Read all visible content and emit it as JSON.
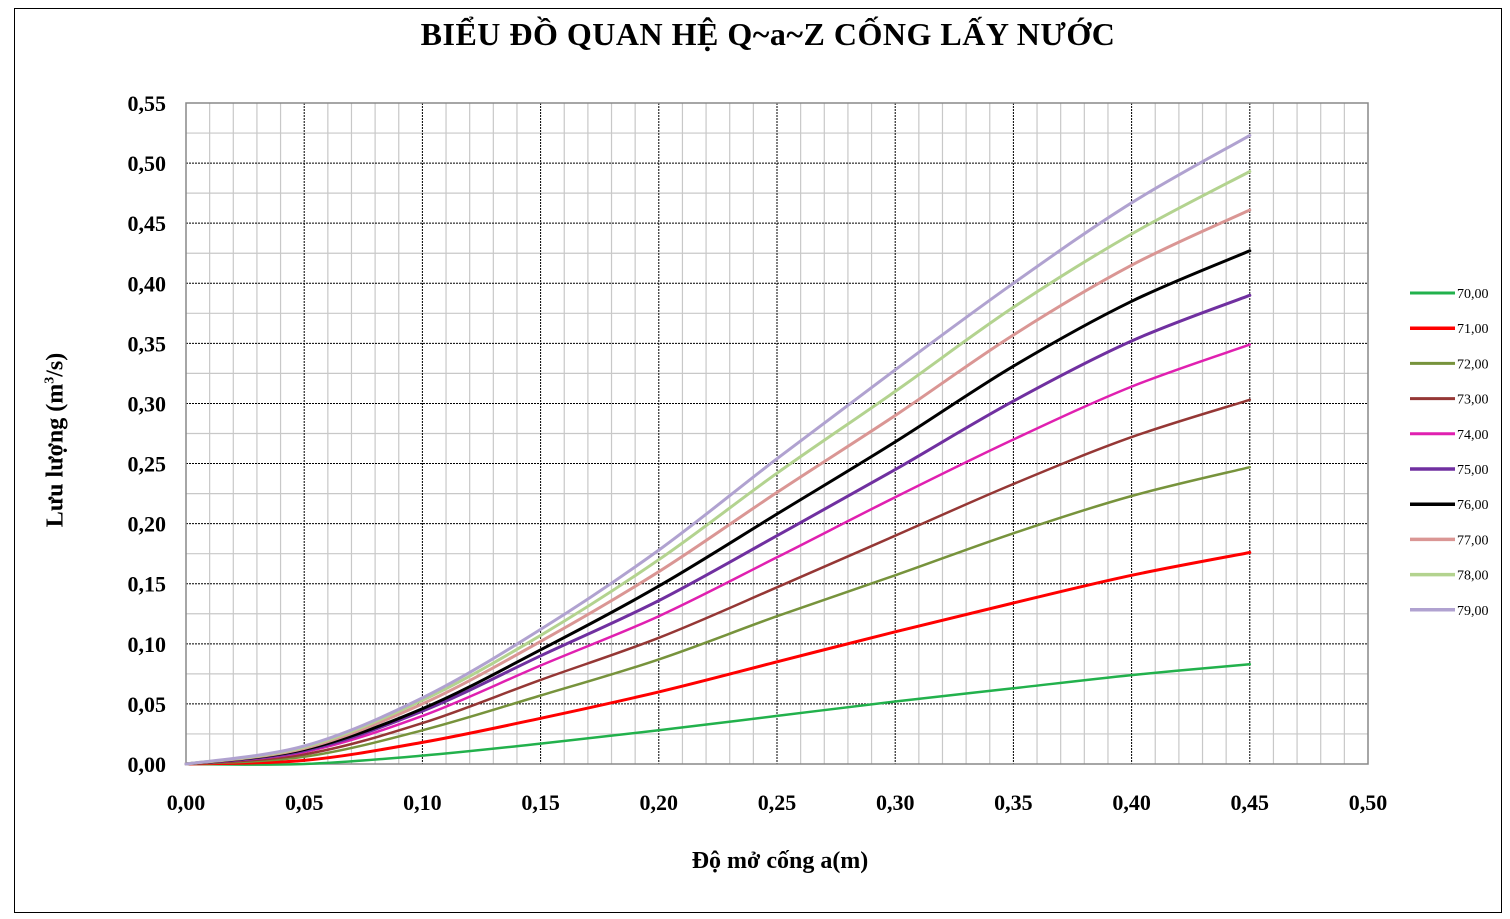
{
  "chart_data": {
    "type": "line",
    "title": "BIỂU ĐỒ QUAN HỆ Q~a~Z CỐNG LẤY NƯỚC",
    "xlabel": "Độ mở cống a(m)",
    "ylabel": "Lưu lượng (m³/s)",
    "xlim": [
      0,
      0.5
    ],
    "ylim": [
      0,
      0.55
    ],
    "x_ticks": [
      "0,00",
      "0,05",
      "0,10",
      "0,15",
      "0,20",
      "0,25",
      "0,30",
      "0,35",
      "0,40",
      "0,45",
      "0,50"
    ],
    "y_ticks": [
      "0,00",
      "0,05",
      "0,10",
      "0,15",
      "0,20",
      "0,25",
      "0,30",
      "0,35",
      "0,40",
      "0,45",
      "0,50",
      "0,55"
    ],
    "grid": true,
    "legend_position": "right",
    "x": [
      0.0,
      0.05,
      0.1,
      0.15,
      0.2,
      0.25,
      0.3,
      0.35,
      0.4,
      0.45
    ],
    "series": [
      {
        "name": "70,00",
        "color": "#22b14c",
        "width": 2.5,
        "values": [
          0.0,
          0.0,
          0.007,
          0.017,
          0.028,
          0.04,
          0.052,
          0.063,
          0.074,
          0.083
        ]
      },
      {
        "name": "71,00",
        "color": "#ff0000",
        "width": 3,
        "values": [
          0.0,
          0.003,
          0.018,
          0.038,
          0.06,
          0.085,
          0.11,
          0.134,
          0.157,
          0.176
        ]
      },
      {
        "name": "72,00",
        "color": "#77933c",
        "width": 2.5,
        "values": [
          0.0,
          0.006,
          0.028,
          0.057,
          0.087,
          0.123,
          0.157,
          0.192,
          0.223,
          0.247
        ]
      },
      {
        "name": "73,00",
        "color": "#953735",
        "width": 2.5,
        "values": [
          0.0,
          0.008,
          0.034,
          0.07,
          0.105,
          0.147,
          0.19,
          0.233,
          0.272,
          0.303
        ]
      },
      {
        "name": "74,00",
        "color": "#e020b0",
        "width": 2.5,
        "values": [
          0.0,
          0.01,
          0.04,
          0.082,
          0.123,
          0.172,
          0.222,
          0.27,
          0.314,
          0.349
        ]
      },
      {
        "name": "75,00",
        "color": "#7030a0",
        "width": 3,
        "values": [
          0.0,
          0.011,
          0.044,
          0.09,
          0.136,
          0.19,
          0.245,
          0.302,
          0.352,
          0.39
        ]
      },
      {
        "name": "76,00",
        "color": "#000000",
        "width": 3,
        "values": [
          0.0,
          0.012,
          0.046,
          0.095,
          0.148,
          0.208,
          0.268,
          0.331,
          0.385,
          0.427
        ]
      },
      {
        "name": "77,00",
        "color": "#da9694",
        "width": 3,
        "values": [
          0.0,
          0.013,
          0.05,
          0.102,
          0.16,
          0.226,
          0.29,
          0.357,
          0.415,
          0.461
        ]
      },
      {
        "name": "78,00",
        "color": "#b3d38f",
        "width": 3,
        "values": [
          0.0,
          0.014,
          0.053,
          0.107,
          0.17,
          0.242,
          0.31,
          0.38,
          0.441,
          0.493
        ]
      },
      {
        "name": "79,00",
        "color": "#b0a2d0",
        "width": 3,
        "values": [
          0.0,
          0.015,
          0.055,
          0.112,
          0.178,
          0.254,
          0.328,
          0.4,
          0.467,
          0.523
        ]
      }
    ]
  }
}
